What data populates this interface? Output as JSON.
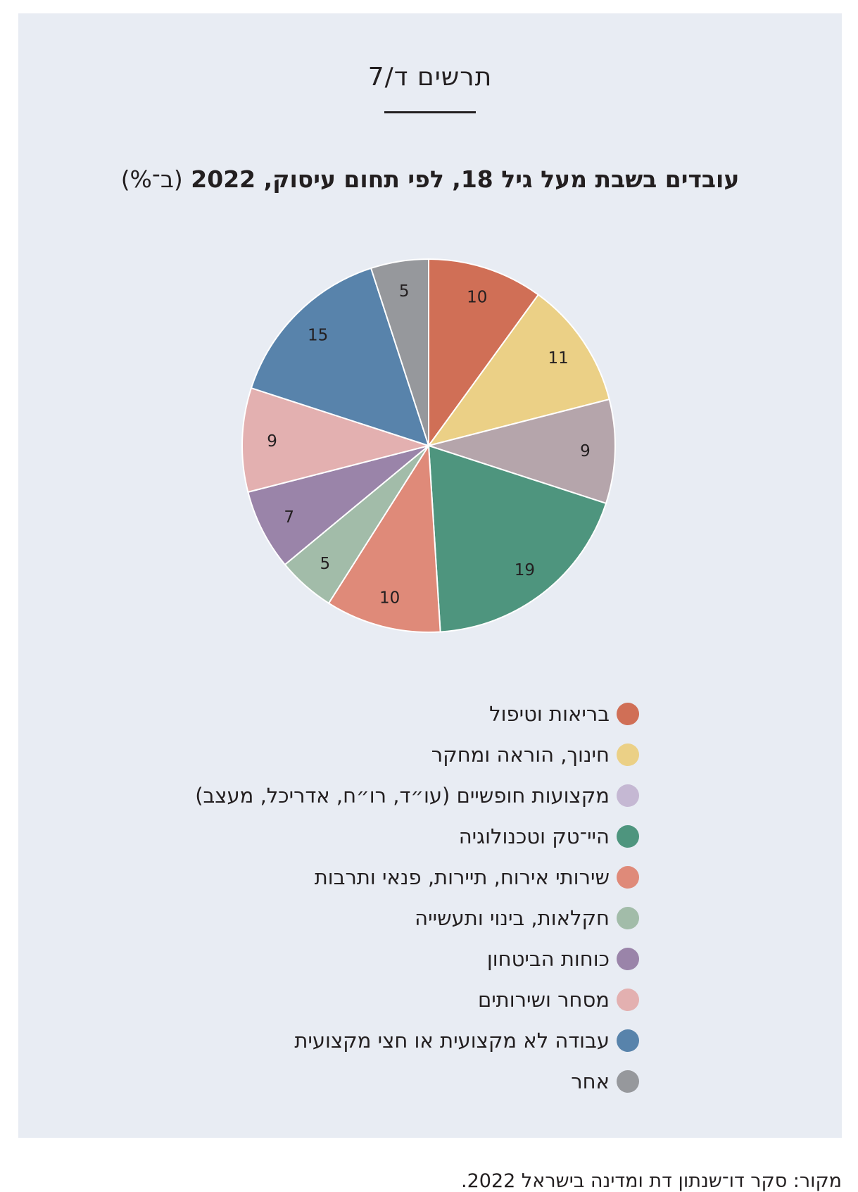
{
  "figure_number": "תרשים ד/7",
  "source": "מקור: סקר דו־שנתון דת ומדינה בישראל 2022.",
  "chart_data": {
    "type": "pie",
    "title": "עובדים בשבת מעל גיל 18, לפי תחום עיסוק, 2022",
    "title_unit": "(ב־%)",
    "legend_position": "bottom",
    "slices": [
      {
        "label": "בריאות וטיפול",
        "value": 10,
        "color": "#d06f56"
      },
      {
        "label": "חינוך, הוראה ומחקר",
        "value": 11,
        "color": "#ebd086"
      },
      {
        "label": "מקצועות חופשיים (עו״ד, רו״ח, אדריכל, מעצב)",
        "value": 9,
        "color": "#b5a5ab",
        "legend_color": "#c5b8d3"
      },
      {
        "label": "היי־טק וטכנולוגיה",
        "value": 19,
        "color": "#4e957e"
      },
      {
        "label": "שירותי אירוח, תיירות, פנאי ותרבות",
        "value": 10,
        "color": "#df8a79"
      },
      {
        "label": "חקלאות, בינוי ותעשייה",
        "value": 5,
        "color": "#a2bca9"
      },
      {
        "label": "כוחות הביטחון",
        "value": 7,
        "color": "#9a84a9"
      },
      {
        "label": "מסחר ושירותים",
        "value": 9,
        "color": "#e3b0b0"
      },
      {
        "label": "עבודה לא מקצועית או חצי מקצועית",
        "value": 15,
        "color": "#5883ab"
      },
      {
        "label": "אחר",
        "value": 5,
        "color": "#96989c"
      }
    ]
  }
}
